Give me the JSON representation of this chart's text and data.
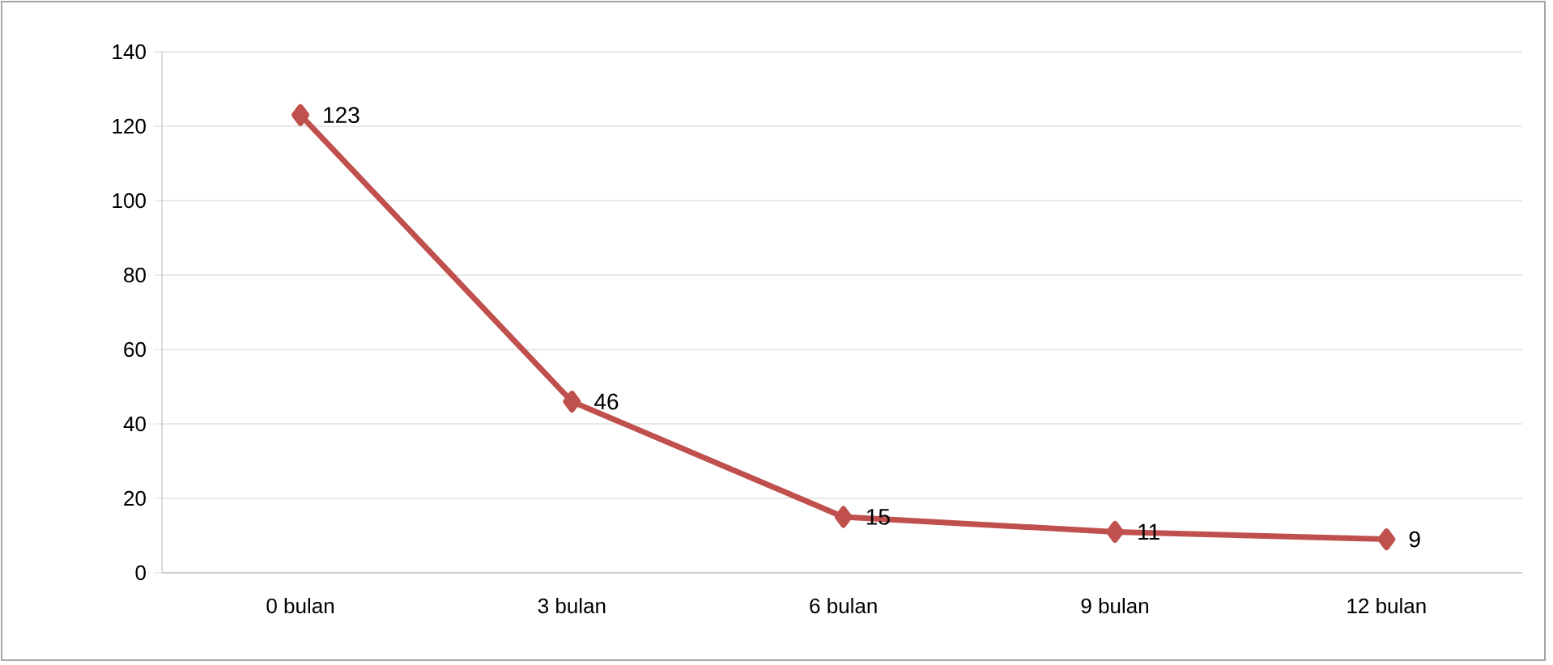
{
  "chart_data": {
    "type": "line",
    "categories": [
      "0 bulan",
      "3 bulan",
      "6 bulan",
      "9 bulan",
      "12 bulan"
    ],
    "values": [
      123,
      46,
      15,
      11,
      9
    ],
    "color": "#c0504d",
    "marker": "diamond",
    "data_labels": true,
    "ylim": [
      0,
      140
    ],
    "yticks": [
      0,
      20,
      40,
      60,
      80,
      100,
      120,
      140
    ],
    "grid": "y"
  }
}
